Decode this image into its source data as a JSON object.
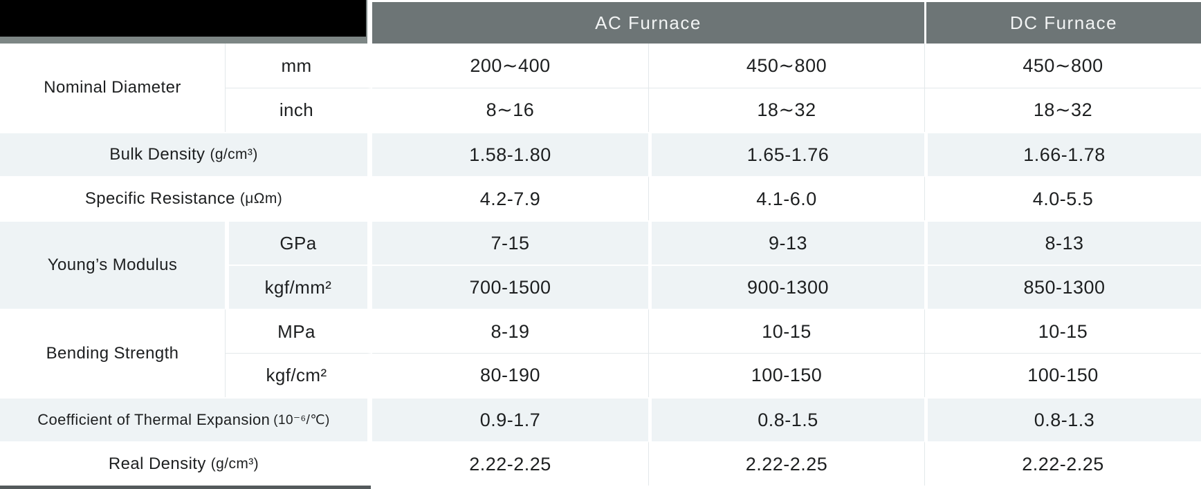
{
  "header": {
    "ac_label": "AC Furnace",
    "dc_label": "DC Furnace",
    "header_bg": "#6d7576",
    "header_text_color": "#f2f4f4",
    "corner_redacted": "black-box"
  },
  "style": {
    "shaded_row_bg": "#eef3f5",
    "text_color": "#1d1f20",
    "bottom_bar_color": "#545a5c"
  },
  "rows": [
    {
      "label": "Nominal Diameter",
      "unit": "mm",
      "values": [
        "200∼400",
        "450∼800",
        "450∼800"
      ]
    },
    {
      "unit": "inch",
      "values": [
        "8∼16",
        "18∼32",
        "18∼32"
      ]
    },
    {
      "label": "Bulk Density",
      "label_unit": "(g/cm³)",
      "values": [
        "1.58-1.80",
        "1.65-1.76",
        "1.66-1.78"
      ]
    },
    {
      "label": "Specific Resistance",
      "label_unit": "(μΩm)",
      "values": [
        "4.2-7.9",
        "4.1-6.0",
        "4.0-5.5"
      ]
    },
    {
      "label": "Young’s Modulus",
      "unit": "GPa",
      "values": [
        "7-15",
        "9-13",
        "8-13"
      ]
    },
    {
      "unit": "kgf/mm²",
      "values": [
        "700-1500",
        "900-1300",
        "850-1300"
      ]
    },
    {
      "label": "Bending Strength",
      "unit": "MPa",
      "values": [
        "8-19",
        "10-15",
        "10-15"
      ]
    },
    {
      "unit": "kgf/cm²",
      "values": [
        "80-190",
        "100-150",
        "100-150"
      ]
    },
    {
      "label": "Coefficient of Thermal Expansion",
      "label_unit": "(10⁻⁶/℃)",
      "values": [
        "0.9-1.7",
        "0.8-1.5",
        "0.8-1.3"
      ]
    },
    {
      "label": "Real Density",
      "label_unit": "(g/cm³)",
      "values": [
        "2.22-2.25",
        "2.22-2.25",
        "2.22-2.25"
      ]
    }
  ]
}
